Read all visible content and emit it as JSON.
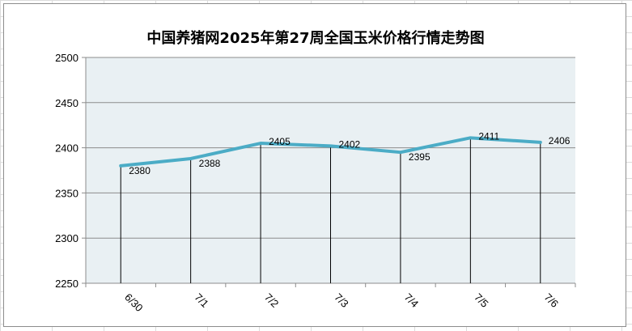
{
  "chart_data": {
    "type": "line",
    "title": "中国养猪网2025年第27周全国玉米价格行情走势图",
    "categories": [
      "6/30",
      "7/1",
      "7/2",
      "7/3",
      "7/4",
      "7/5",
      "7/6"
    ],
    "series": [
      {
        "values": [
          2380,
          2388,
          2405,
          2402,
          2395,
          2411,
          2406
        ],
        "color": "#4bacc6"
      }
    ],
    "ylim": [
      2250,
      2500
    ],
    "yticks": [
      "2500",
      "2450",
      "2400",
      "2350",
      "2300",
      "2250"
    ],
    "data_labels": [
      "2380",
      "2388",
      "2405",
      "2402",
      "2395",
      "2411",
      "2406"
    ],
    "xlabel": "",
    "ylabel": "",
    "grid": true,
    "plot_background": "#e9f0f3"
  }
}
